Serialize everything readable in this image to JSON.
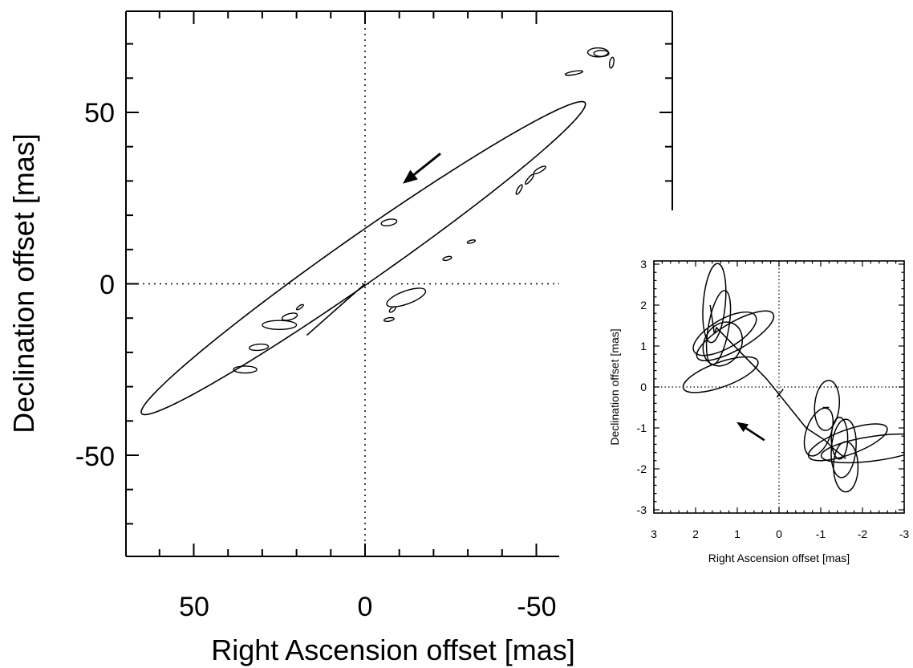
{
  "chart_data": [
    {
      "type": "line",
      "title": "",
      "xlabel": "Right Ascension offset [mas]",
      "ylabel": "Declination offset [mas]",
      "xlim": [
        67,
        -57
      ],
      "ylim": [
        -80,
        80
      ],
      "x_inverted": true,
      "x_ticks": [
        50,
        0,
        -50
      ],
      "y_ticks": [
        50,
        0,
        -50
      ],
      "x_tick_labels": [
        "50",
        "0",
        "-50"
      ],
      "y_tick_labels": [
        "50",
        "0",
        "-50"
      ],
      "zero_lines": "dotted",
      "orbit_ellipse": {
        "center": [
          0.5,
          7.5
        ],
        "semi_axes": [
          79,
          6.8
        ],
        "angle_deg": 35
      },
      "segment": {
        "x": [
          0,
          17
        ],
        "y": [
          0,
          -15
        ]
      },
      "direction_arrow": {
        "from": [
          -22,
          38
        ],
        "to": [
          -12,
          30
        ]
      },
      "error_ellipses": [
        {
          "x": -68,
          "y": 67.5,
          "a": 3.0,
          "b": 1.3,
          "angle": 0
        },
        {
          "x": -69,
          "y": 67.2,
          "a": 2.2,
          "b": 0.9,
          "angle": 0
        },
        {
          "x": -72,
          "y": 64.5,
          "a": 1.6,
          "b": 0.6,
          "angle": 80
        },
        {
          "x": -61,
          "y": 61.5,
          "a": 2.6,
          "b": 0.5,
          "angle": 10
        },
        {
          "x": -51,
          "y": 33.2,
          "a": 2.0,
          "b": 0.6,
          "angle": 30
        },
        {
          "x": -48,
          "y": 30.5,
          "a": 1.8,
          "b": 0.5,
          "angle": 50
        },
        {
          "x": -45,
          "y": 27.5,
          "a": 1.6,
          "b": 0.5,
          "angle": 60
        },
        {
          "x": -7,
          "y": 17.9,
          "a": 2.3,
          "b": 0.9,
          "angle": 10
        },
        {
          "x": -31,
          "y": 12.3,
          "a": 1.2,
          "b": 0.4,
          "angle": 15
        },
        {
          "x": -24,
          "y": 7.4,
          "a": 1.3,
          "b": 0.5,
          "angle": 15
        },
        {
          "x": -12,
          "y": -4.0,
          "a": 6.0,
          "b": 1.9,
          "angle": 20
        },
        {
          "x": -8,
          "y": -7.5,
          "a": 1.1,
          "b": 0.5,
          "angle": 40
        },
        {
          "x": -7,
          "y": -10.4,
          "a": 1.5,
          "b": 0.5,
          "angle": 10
        },
        {
          "x": 19,
          "y": -6.8,
          "a": 1.2,
          "b": 0.4,
          "angle": 35
        },
        {
          "x": 22,
          "y": -9.6,
          "a": 2.3,
          "b": 0.9,
          "angle": 15
        },
        {
          "x": 25,
          "y": -12.0,
          "a": 5.0,
          "b": 1.3,
          "angle": 0
        },
        {
          "x": 31,
          "y": -18.5,
          "a": 2.8,
          "b": 0.9,
          "angle": 5
        },
        {
          "x": 35,
          "y": -25.0,
          "a": 3.4,
          "b": 1.0,
          "angle": 0
        }
      ]
    },
    {
      "type": "line",
      "title": "",
      "xlabel": "Right Ascension offset [mas]",
      "ylabel": "Declination offset [mas]",
      "xlim": [
        3,
        -3
      ],
      "ylim": [
        -3.1,
        3.1
      ],
      "x_inverted": true,
      "x_ticks": [
        3,
        2,
        1,
        0,
        -1,
        -2,
        -3
      ],
      "y_ticks": [
        3,
        2,
        1,
        0,
        -1,
        -2,
        -3
      ],
      "x_tick_labels": [
        "3",
        "2",
        "1",
        "0",
        "-1",
        "-2",
        "-3"
      ],
      "y_tick_labels": [
        "3",
        "2",
        "1",
        "0",
        "-1",
        "-2",
        "-3"
      ],
      "zero_lines": "dotted",
      "path": {
        "x": [
          1.65,
          1.55,
          1.5,
          0.3,
          -0.65,
          -1.1,
          -1.3,
          -1.6
        ],
        "y": [
          2.0,
          1.3,
          1.45,
          0.2,
          -1.0,
          -1.3,
          -1.5,
          -1.75
        ]
      },
      "extra_segments": [
        {
          "x": [
            0.05,
            -0.1
          ],
          "y": [
            -0.25,
            -0.05
          ]
        },
        {
          "x": [
            -1.05,
            -1.2
          ],
          "y": [
            -0.5,
            -0.5
          ]
        }
      ],
      "direction_arrow": {
        "from": [
          0.35,
          -1.3
        ],
        "to": [
          0.95,
          -0.9
        ]
      },
      "error_ellipses": [
        {
          "x": 1.55,
          "y": 2.05,
          "a": 0.95,
          "b": 0.27,
          "angle": 85
        },
        {
          "x": 1.45,
          "y": 1.45,
          "a": 0.9,
          "b": 0.25,
          "angle": 80
        },
        {
          "x": 1.3,
          "y": 1.3,
          "a": 0.85,
          "b": 0.35,
          "angle": 30
        },
        {
          "x": 1.05,
          "y": 1.25,
          "a": 1.05,
          "b": 0.33,
          "angle": 30
        },
        {
          "x": 1.35,
          "y": 1.05,
          "a": 0.55,
          "b": 0.45,
          "angle": 60
        },
        {
          "x": 1.4,
          "y": 0.3,
          "a": 0.95,
          "b": 0.3,
          "angle": 20
        },
        {
          "x": -1.15,
          "y": -0.45,
          "a": 0.6,
          "b": 0.3,
          "angle": 85
        },
        {
          "x": -0.95,
          "y": -1.1,
          "a": 0.6,
          "b": 0.3,
          "angle": 70
        },
        {
          "x": -1.45,
          "y": -1.25,
          "a": 0.5,
          "b": 0.2,
          "angle": 90
        },
        {
          "x": -1.55,
          "y": -1.5,
          "a": 0.7,
          "b": 0.3,
          "angle": 85
        },
        {
          "x": -1.6,
          "y": -1.95,
          "a": 0.6,
          "b": 0.3,
          "angle": 90
        },
        {
          "x": -1.65,
          "y": -1.35,
          "a": 1.0,
          "b": 0.3,
          "angle": 20
        },
        {
          "x": -2.3,
          "y": -1.5,
          "a": 1.3,
          "b": 0.3,
          "angle": 8
        }
      ]
    }
  ]
}
